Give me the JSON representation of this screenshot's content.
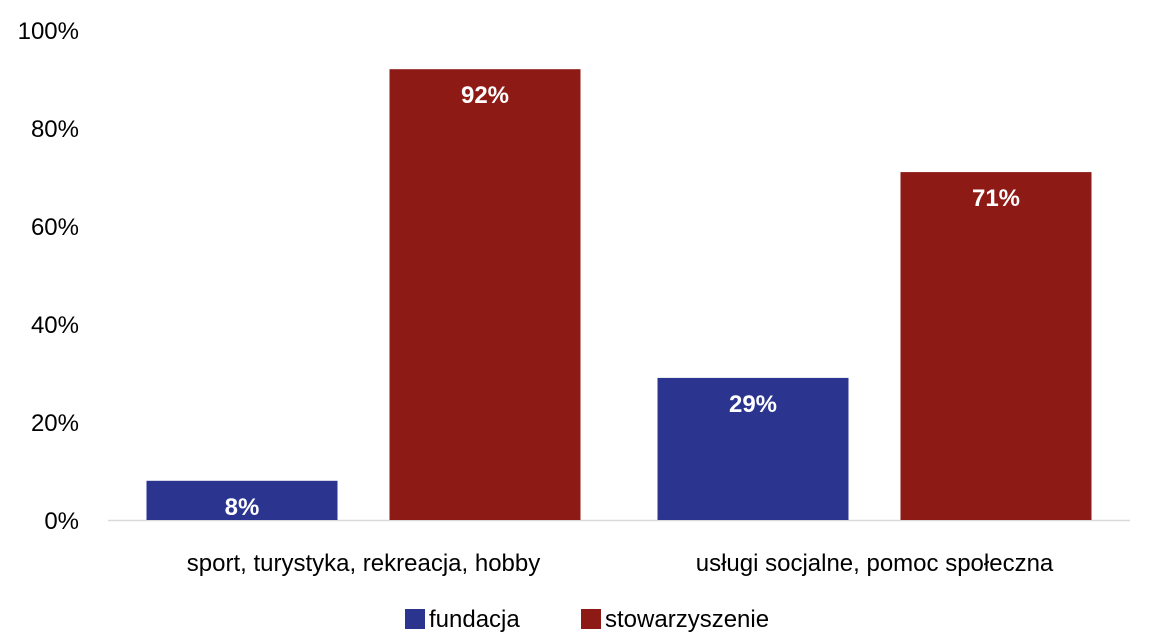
{
  "chart_data": {
    "type": "bar",
    "categories": [
      "sport, turystyka, rekreacja, hobby",
      "usługi socjalne, pomoc społeczna"
    ],
    "series": [
      {
        "name": "fundacja",
        "values": [
          8,
          29
        ],
        "labels": [
          "8%",
          "29%"
        ],
        "color": "#2B3590"
      },
      {
        "name": "stowarzyszenie",
        "values": [
          92,
          71
        ],
        "labels": [
          "92%",
          "71%"
        ],
        "color": "#8E1A16"
      }
    ],
    "y_ticks": [
      "0%",
      "20%",
      "40%",
      "60%",
      "80%",
      "100%"
    ],
    "ylim": [
      0,
      100
    ],
    "grid": false,
    "legend": "bottom-center",
    "axis_color": "#D9D9D9"
  }
}
